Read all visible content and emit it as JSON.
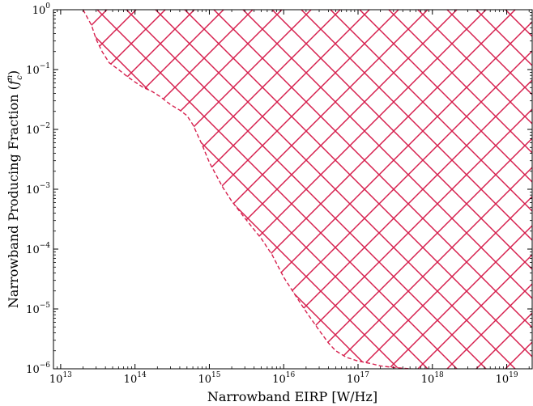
{
  "chart_data": {
    "type": "area",
    "xlabel": "Narrowband EIRP [W/Hz]",
    "ylabel": "Narrowband Producing Fraction (",
    "ylabel_math": "f",
    "ylabel_sup": "n",
    "ylabel_sub": "c",
    "ylabel_close": ")",
    "x_scale": "log",
    "y_scale": "log",
    "xlim": [
      8000000000000.0,
      2.2e+19
    ],
    "ylim": [
      1e-06,
      1.0
    ],
    "x_ticks": [
      {
        "base": "10",
        "exp": "13",
        "value": 10000000000000.0
      },
      {
        "base": "10",
        "exp": "14",
        "value": 100000000000000.0
      },
      {
        "base": "10",
        "exp": "15",
        "value": 1000000000000000.0
      },
      {
        "base": "10",
        "exp": "16",
        "value": 1e+16
      },
      {
        "base": "10",
        "exp": "17",
        "value": 1e+17
      },
      {
        "base": "10",
        "exp": "18",
        "value": 1e+18
      },
      {
        "base": "10",
        "exp": "19",
        "value": 1e+19
      }
    ],
    "y_ticks": [
      {
        "base": "10",
        "exp": "0",
        "value": 1
      },
      {
        "base": "10",
        "exp": "−1",
        "value": 0.1
      },
      {
        "base": "10",
        "exp": "−2",
        "value": 0.01
      },
      {
        "base": "10",
        "exp": "−3",
        "value": 0.001
      },
      {
        "base": "10",
        "exp": "−4",
        "value": 0.0001
      },
      {
        "base": "10",
        "exp": "−5",
        "value": 1e-05
      },
      {
        "base": "10",
        "exp": "−6",
        "value": 1e-06
      }
    ],
    "grid": false,
    "legend": "none",
    "series": [
      {
        "style": "dashed boundary with hatched excluded region above",
        "color": "#d6204e",
        "x": [
          20000000000000.0,
          26000000000000.0,
          30000000000000.0,
          36000000000000.0,
          45000000000000.0,
          60000000000000.0,
          80000000000000.0,
          100000000000000.0,
          130000000000000.0,
          170000000000000.0,
          220000000000000.0,
          300000000000000.0,
          400000000000000.0,
          500000000000000.0,
          600000000000000.0,
          800000000000000.0,
          1000000000000000.0,
          1500000000000000.0,
          2000000000000000.0,
          3000000000000000.0,
          5000000000000000.0,
          7000000000000000.0,
          1e+16,
          1.5e+16,
          2e+16,
          3e+16,
          4e+16,
          5e+16,
          7e+16,
          1e+17,
          1.5e+17,
          2e+17,
          3e+17,
          5e+17,
          1e+18,
          2e+18,
          5e+18,
          1e+19,
          2.2e+19
        ],
        "y": [
          1.0,
          0.55,
          0.32,
          0.2,
          0.13,
          0.1,
          0.075,
          0.062,
          0.05,
          0.043,
          0.035,
          0.026,
          0.021,
          0.017,
          0.012,
          0.0055,
          0.0028,
          0.0011,
          0.00063,
          0.00033,
          0.00015,
          8e-05,
          3.4e-05,
          1.55e-05,
          9e-06,
          4.4e-06,
          2.7e-06,
          2e-06,
          1.55e-06,
          1.35e-06,
          1.22e-06,
          1.12e-06,
          1.05e-06,
          1e-06,
          9.5e-07,
          9e-07,
          8.8e-07,
          8.7e-07,
          8.7e-07
        ]
      }
    ]
  }
}
